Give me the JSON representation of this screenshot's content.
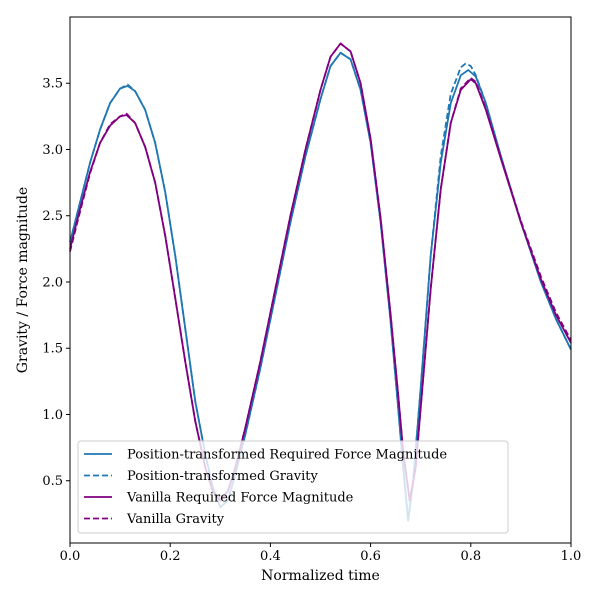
{
  "chart_data": {
    "type": "line",
    "xlabel": "Normalized time",
    "ylabel": "Gravity / Force magnitude",
    "xlim": [
      0.0,
      1.0
    ],
    "ylim": [
      0.03,
      4.0
    ],
    "grid": false,
    "legend_position": "lower-left",
    "xticks": [
      "0.0",
      "0.2",
      "0.4",
      "0.6",
      "0.8",
      "1.0"
    ],
    "yticks": [
      "0.5",
      "1.0",
      "1.5",
      "2.0",
      "2.5",
      "3.0",
      "3.5"
    ],
    "series": [
      {
        "name": "Position-transformed Required Force Magnitude",
        "color": "#1f77b4",
        "dash": "solid",
        "points": [
          [
            0.0,
            2.3
          ],
          [
            0.02,
            2.6
          ],
          [
            0.04,
            2.9
          ],
          [
            0.06,
            3.15
          ],
          [
            0.08,
            3.35
          ],
          [
            0.1,
            3.46
          ],
          [
            0.115,
            3.48
          ],
          [
            0.13,
            3.44
          ],
          [
            0.15,
            3.3
          ],
          [
            0.17,
            3.05
          ],
          [
            0.19,
            2.68
          ],
          [
            0.21,
            2.2
          ],
          [
            0.23,
            1.65
          ],
          [
            0.25,
            1.1
          ],
          [
            0.27,
            0.7
          ],
          [
            0.285,
            0.45
          ],
          [
            0.3,
            0.3
          ],
          [
            0.315,
            0.35
          ],
          [
            0.33,
            0.55
          ],
          [
            0.35,
            0.85
          ],
          [
            0.38,
            1.35
          ],
          [
            0.41,
            1.9
          ],
          [
            0.44,
            2.45
          ],
          [
            0.47,
            2.95
          ],
          [
            0.5,
            3.38
          ],
          [
            0.52,
            3.63
          ],
          [
            0.54,
            3.73
          ],
          [
            0.56,
            3.68
          ],
          [
            0.58,
            3.45
          ],
          [
            0.6,
            3.05
          ],
          [
            0.62,
            2.45
          ],
          [
            0.64,
            1.7
          ],
          [
            0.655,
            1.05
          ],
          [
            0.665,
            0.6
          ],
          [
            0.675,
            0.2
          ],
          [
            0.685,
            0.5
          ],
          [
            0.7,
            1.2
          ],
          [
            0.72,
            2.2
          ],
          [
            0.74,
            2.9
          ],
          [
            0.76,
            3.35
          ],
          [
            0.78,
            3.56
          ],
          [
            0.795,
            3.6
          ],
          [
            0.81,
            3.55
          ],
          [
            0.83,
            3.35
          ],
          [
            0.86,
            2.95
          ],
          [
            0.9,
            2.45
          ],
          [
            0.94,
            2.0
          ],
          [
            0.97,
            1.72
          ],
          [
            1.0,
            1.49
          ]
        ]
      },
      {
        "name": "Position-transformed Gravity",
        "color": "#1f77b4",
        "dash": "dashed",
        "points": [
          [
            0.0,
            2.3
          ],
          [
            0.02,
            2.6
          ],
          [
            0.04,
            2.9
          ],
          [
            0.06,
            3.15
          ],
          [
            0.08,
            3.35
          ],
          [
            0.1,
            3.46
          ],
          [
            0.115,
            3.49
          ],
          [
            0.13,
            3.44
          ],
          [
            0.15,
            3.3
          ],
          [
            0.17,
            3.05
          ],
          [
            0.19,
            2.68
          ],
          [
            0.21,
            2.2
          ],
          [
            0.23,
            1.65
          ],
          [
            0.25,
            1.1
          ],
          [
            0.27,
            0.7
          ],
          [
            0.285,
            0.45
          ],
          [
            0.3,
            0.3
          ],
          [
            0.315,
            0.35
          ],
          [
            0.33,
            0.55
          ],
          [
            0.35,
            0.85
          ],
          [
            0.38,
            1.35
          ],
          [
            0.41,
            1.9
          ],
          [
            0.44,
            2.45
          ],
          [
            0.47,
            2.95
          ],
          [
            0.5,
            3.38
          ],
          [
            0.52,
            3.63
          ],
          [
            0.54,
            3.73
          ],
          [
            0.56,
            3.68
          ],
          [
            0.58,
            3.45
          ],
          [
            0.6,
            3.05
          ],
          [
            0.62,
            2.45
          ],
          [
            0.64,
            1.7
          ],
          [
            0.655,
            1.05
          ],
          [
            0.665,
            0.6
          ],
          [
            0.675,
            0.2
          ],
          [
            0.685,
            0.5
          ],
          [
            0.7,
            1.2
          ],
          [
            0.72,
            2.2
          ],
          [
            0.74,
            2.95
          ],
          [
            0.76,
            3.42
          ],
          [
            0.78,
            3.62
          ],
          [
            0.79,
            3.65
          ],
          [
            0.8,
            3.63
          ],
          [
            0.81,
            3.56
          ],
          [
            0.83,
            3.35
          ],
          [
            0.86,
            2.95
          ],
          [
            0.9,
            2.45
          ],
          [
            0.94,
            2.0
          ],
          [
            0.97,
            1.72
          ],
          [
            1.0,
            1.49
          ]
        ]
      },
      {
        "name": "Vanilla Required Force Magnitude",
        "color": "#800080",
        "dash": "solid",
        "points": [
          [
            0.0,
            2.25
          ],
          [
            0.02,
            2.55
          ],
          [
            0.04,
            2.83
          ],
          [
            0.06,
            3.05
          ],
          [
            0.08,
            3.18
          ],
          [
            0.1,
            3.25
          ],
          [
            0.113,
            3.26
          ],
          [
            0.13,
            3.2
          ],
          [
            0.15,
            3.02
          ],
          [
            0.17,
            2.75
          ],
          [
            0.19,
            2.35
          ],
          [
            0.21,
            1.88
          ],
          [
            0.23,
            1.4
          ],
          [
            0.25,
            0.95
          ],
          [
            0.27,
            0.6
          ],
          [
            0.285,
            0.42
          ],
          [
            0.3,
            0.35
          ],
          [
            0.315,
            0.42
          ],
          [
            0.33,
            0.6
          ],
          [
            0.35,
            0.9
          ],
          [
            0.38,
            1.4
          ],
          [
            0.41,
            1.95
          ],
          [
            0.44,
            2.5
          ],
          [
            0.47,
            3.0
          ],
          [
            0.5,
            3.45
          ],
          [
            0.52,
            3.7
          ],
          [
            0.54,
            3.8
          ],
          [
            0.56,
            3.74
          ],
          [
            0.58,
            3.5
          ],
          [
            0.6,
            3.08
          ],
          [
            0.62,
            2.48
          ],
          [
            0.64,
            1.75
          ],
          [
            0.655,
            1.15
          ],
          [
            0.665,
            0.72
          ],
          [
            0.678,
            0.35
          ],
          [
            0.69,
            0.6
          ],
          [
            0.7,
            1.05
          ],
          [
            0.72,
            1.95
          ],
          [
            0.74,
            2.7
          ],
          [
            0.76,
            3.2
          ],
          [
            0.78,
            3.45
          ],
          [
            0.8,
            3.53
          ],
          [
            0.81,
            3.5
          ],
          [
            0.83,
            3.3
          ],
          [
            0.86,
            2.93
          ],
          [
            0.9,
            2.45
          ],
          [
            0.94,
            2.02
          ],
          [
            0.97,
            1.75
          ],
          [
            1.0,
            1.54
          ]
        ]
      },
      {
        "name": "Vanilla Gravity",
        "color": "#800080",
        "dash": "dashed",
        "points": [
          [
            0.0,
            2.23
          ],
          [
            0.02,
            2.53
          ],
          [
            0.04,
            2.82
          ],
          [
            0.06,
            3.05
          ],
          [
            0.08,
            3.19
          ],
          [
            0.1,
            3.25
          ],
          [
            0.113,
            3.27
          ],
          [
            0.13,
            3.2
          ],
          [
            0.15,
            3.02
          ],
          [
            0.17,
            2.75
          ],
          [
            0.19,
            2.35
          ],
          [
            0.21,
            1.88
          ],
          [
            0.23,
            1.4
          ],
          [
            0.25,
            0.95
          ],
          [
            0.27,
            0.6
          ],
          [
            0.285,
            0.42
          ],
          [
            0.3,
            0.36
          ],
          [
            0.315,
            0.42
          ],
          [
            0.33,
            0.6
          ],
          [
            0.35,
            0.9
          ],
          [
            0.38,
            1.4
          ],
          [
            0.41,
            1.95
          ],
          [
            0.44,
            2.5
          ],
          [
            0.47,
            3.0
          ],
          [
            0.5,
            3.45
          ],
          [
            0.52,
            3.7
          ],
          [
            0.54,
            3.8
          ],
          [
            0.56,
            3.74
          ],
          [
            0.58,
            3.5
          ],
          [
            0.6,
            3.08
          ],
          [
            0.62,
            2.48
          ],
          [
            0.64,
            1.75
          ],
          [
            0.655,
            1.15
          ],
          [
            0.665,
            0.72
          ],
          [
            0.678,
            0.35
          ],
          [
            0.69,
            0.6
          ],
          [
            0.7,
            1.05
          ],
          [
            0.72,
            1.95
          ],
          [
            0.74,
            2.7
          ],
          [
            0.76,
            3.2
          ],
          [
            0.78,
            3.46
          ],
          [
            0.8,
            3.54
          ],
          [
            0.81,
            3.51
          ],
          [
            0.83,
            3.31
          ],
          [
            0.86,
            2.94
          ],
          [
            0.9,
            2.46
          ],
          [
            0.94,
            2.04
          ],
          [
            0.97,
            1.77
          ],
          [
            1.0,
            1.56
          ]
        ]
      }
    ]
  }
}
